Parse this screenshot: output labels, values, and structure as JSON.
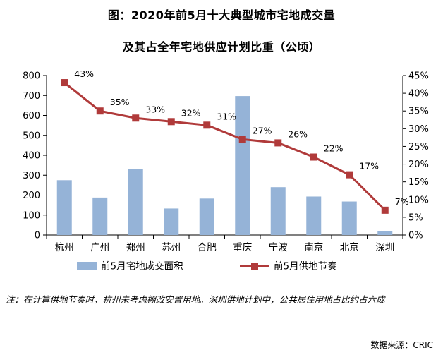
{
  "header": {
    "title_line1": "图：2020年前5月十大典型城市宅地成交量",
    "title_line2": "及其占全年宅地供应计划比重（公顷）"
  },
  "chart_data": {
    "type": "bar+line",
    "categories": [
      "杭州",
      "广州",
      "郑州",
      "苏州",
      "合肥",
      "重庆",
      "宁波",
      "南京",
      "北京",
      "深圳"
    ],
    "series": [
      {
        "name": "前5月宅地成交面积",
        "kind": "bar",
        "axis": "left",
        "color": "#95b3d7",
        "values": [
          275,
          188,
          332,
          133,
          183,
          697,
          240,
          193,
          168,
          18
        ]
      },
      {
        "name": "前5月供地节奏",
        "kind": "line",
        "axis": "right",
        "color": "#b03a3a",
        "values": [
          43,
          35,
          33,
          32,
          31,
          27,
          26,
          22,
          17,
          7
        ],
        "labels": [
          "43%",
          "35%",
          "33%",
          "32%",
          "31%",
          "27%",
          "26%",
          "22%",
          "17%",
          "7%"
        ]
      }
    ],
    "y_left": {
      "min": 0,
      "max": 800,
      "ticks": [
        0,
        100,
        200,
        300,
        400,
        500,
        600,
        700,
        800
      ]
    },
    "y_right": {
      "min": 0,
      "max": 45,
      "ticks": [
        "0%",
        "5%",
        "10%",
        "15%",
        "20%",
        "25%",
        "30%",
        "35%",
        "40%",
        "45%"
      ]
    },
    "legend_position": "bottom"
  },
  "note": "注：在计算供地节奏时，杭州未考虑棚改安置用地。深圳供地计划中，公共居住用地占比约占六成",
  "source": "数据来源：CRIC"
}
